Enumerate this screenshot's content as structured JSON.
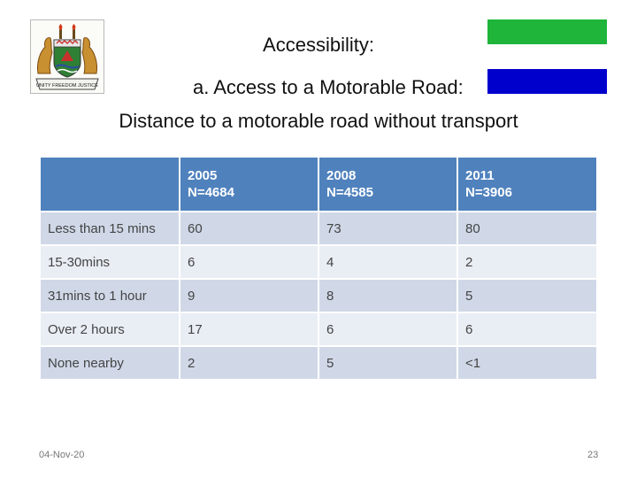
{
  "header": {
    "title_line1": "Accessibility:",
    "title_line2": "a. Access to a Motorable  Road:",
    "title_line3": "Distance to a motorable road without transport"
  },
  "flag": {
    "colors": [
      "#1eb53a",
      "#ffffff",
      "#0000cd"
    ]
  },
  "coat_of_arms": {
    "motto": "UNITY FREEDOM JUSTICE"
  },
  "table": {
    "columns": [
      {
        "label": "",
        "line1": "",
        "line2": ""
      },
      {
        "line1": "2005",
        "line2": "N=4684"
      },
      {
        "line1": "2008",
        "line2": "N=4585"
      },
      {
        "line1": "2011",
        "line2": "N=3906"
      }
    ],
    "rows": [
      {
        "label": "Less than 15 mins",
        "values": [
          "60",
          "73",
          "80"
        ]
      },
      {
        "label": "15-30mins",
        "values": [
          "6",
          "4",
          "2"
        ]
      },
      {
        "label": "31mins to 1 hour",
        "values": [
          "9",
          "8",
          "5"
        ]
      },
      {
        "label": "Over 2 hours",
        "values": [
          "17",
          "6",
          "6"
        ]
      },
      {
        "label": "None nearby",
        "values": [
          "2",
          "5",
          "<1"
        ]
      }
    ]
  },
  "footer": {
    "date": "04-Nov-20",
    "page": "23"
  }
}
